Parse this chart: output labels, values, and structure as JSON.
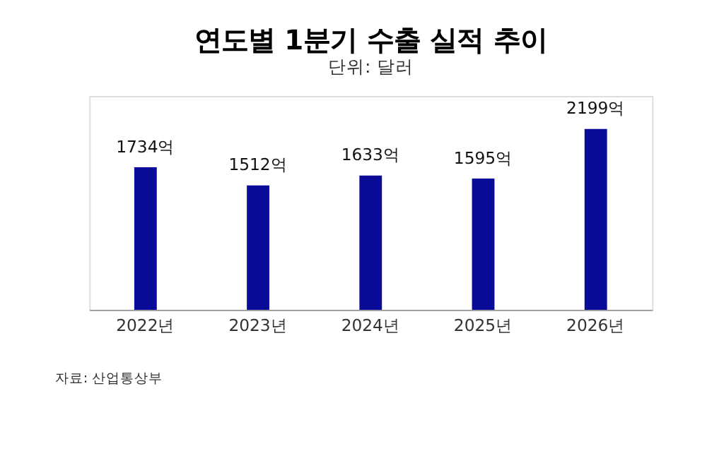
{
  "chart_data": {
    "type": "bar",
    "title": "연도별 1분기 수출 실적 추이",
    "subtitle": "단위: 달러",
    "categories": [
      "2022년",
      "2023년",
      "2024년",
      "2025년",
      "2026년"
    ],
    "values": [
      1734,
      1512,
      1633,
      1595,
      2199
    ],
    "value_labels": [
      "1734억",
      "1512억",
      "1633억",
      "1595억",
      "2199억"
    ],
    "color": "#0b0b99",
    "ylim": [
      0,
      2600
    ],
    "tick_labels": "x",
    "grid": false,
    "annotations": [
      "자료: 산업통상부"
    ]
  }
}
